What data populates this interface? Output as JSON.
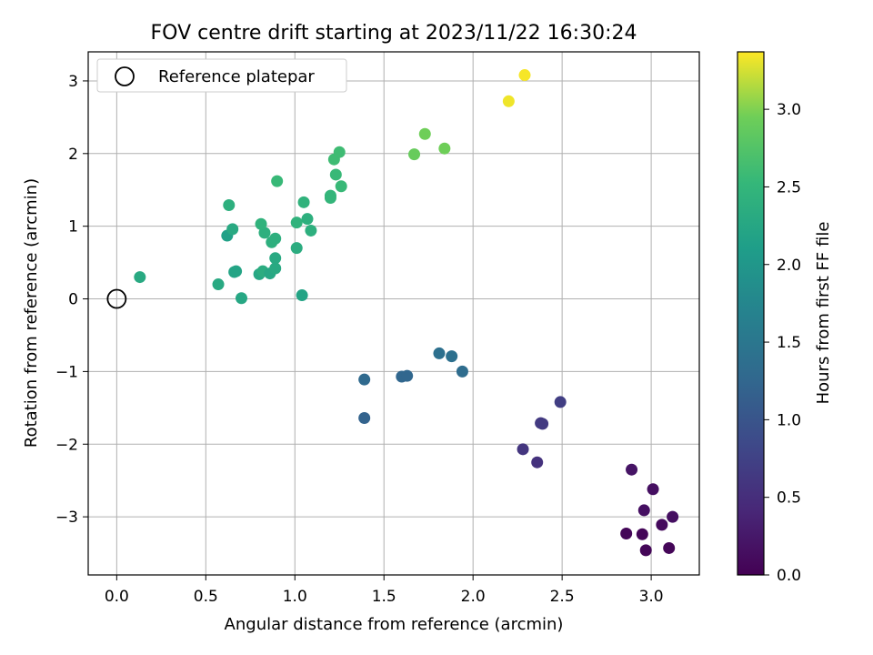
{
  "chart_data": {
    "type": "scatter",
    "title": "FOV centre drift starting at 2023/11/22 16:30:24",
    "xlabel": "Angular distance from reference (arcmin)",
    "ylabel": "Rotation from reference (arcmin)",
    "xlim": [
      -0.16,
      3.27
    ],
    "ylim": [
      -3.8,
      3.4
    ],
    "xticks": [
      0.0,
      0.5,
      1.0,
      1.5,
      2.0,
      2.5,
      3.0
    ],
    "xtick_labels": [
      "0.0",
      "0.5",
      "1.0",
      "1.5",
      "2.0",
      "2.5",
      "3.0"
    ],
    "yticks": [
      -3,
      -2,
      -1,
      0,
      1,
      2,
      3
    ],
    "ytick_labels": [
      "−3",
      "−2",
      "−1",
      "0",
      "1",
      "2",
      "3"
    ],
    "grid": true,
    "legend": {
      "location": "upper-left",
      "label": "Reference platepar"
    },
    "reference_point": {
      "x": 0.0,
      "y": 0.0,
      "marker": "open-circle"
    },
    "colorbar": {
      "label": "Hours from first FF file",
      "colormap": "viridis",
      "range": [
        0.0,
        3.37
      ],
      "ticks": [
        0.0,
        0.5,
        1.0,
        1.5,
        2.0,
        2.5,
        3.0
      ],
      "tick_labels": [
        "0.0",
        "0.5",
        "1.0",
        "1.5",
        "2.0",
        "2.5",
        "3.0"
      ]
    },
    "series": [
      {
        "points": [
          {
            "x": 2.86,
            "y": -3.23,
            "c": 0.05
          },
          {
            "x": 2.95,
            "y": -3.24,
            "c": 0.05
          },
          {
            "x": 2.97,
            "y": -3.46,
            "c": 0.05
          },
          {
            "x": 3.1,
            "y": -3.43,
            "c": 0.05
          },
          {
            "x": 3.06,
            "y": -3.11,
            "c": 0.1
          },
          {
            "x": 3.12,
            "y": -3.0,
            "c": 0.15
          },
          {
            "x": 2.96,
            "y": -2.91,
            "c": 0.15
          },
          {
            "x": 3.01,
            "y": -2.62,
            "c": 0.15
          },
          {
            "x": 2.89,
            "y": -2.35,
            "c": 0.2
          },
          {
            "x": 2.36,
            "y": -2.25,
            "c": 0.55
          },
          {
            "x": 2.28,
            "y": -2.07,
            "c": 0.6
          },
          {
            "x": 2.39,
            "y": -1.72,
            "c": 0.65
          },
          {
            "x": 2.38,
            "y": -1.71,
            "c": 0.65
          },
          {
            "x": 2.49,
            "y": -1.42,
            "c": 0.7
          },
          {
            "x": 1.94,
            "y": -1.0,
            "c": 1.35
          },
          {
            "x": 1.88,
            "y": -0.79,
            "c": 1.4
          },
          {
            "x": 1.81,
            "y": -0.75,
            "c": 1.4
          },
          {
            "x": 1.6,
            "y": -1.07,
            "c": 1.25
          },
          {
            "x": 1.63,
            "y": -1.06,
            "c": 1.25
          },
          {
            "x": 1.39,
            "y": -1.11,
            "c": 1.3
          },
          {
            "x": 1.39,
            "y": -1.64,
            "c": 1.2
          },
          {
            "x": 0.13,
            "y": 0.3,
            "c": 2.3
          },
          {
            "x": 0.57,
            "y": 0.2,
            "c": 2.3
          },
          {
            "x": 0.7,
            "y": 0.01,
            "c": 2.25
          },
          {
            "x": 0.67,
            "y": 0.38,
            "c": 2.2
          },
          {
            "x": 0.66,
            "y": 0.37,
            "c": 2.2
          },
          {
            "x": 0.62,
            "y": 0.87,
            "c": 2.15
          },
          {
            "x": 0.65,
            "y": 0.96,
            "c": 2.3
          },
          {
            "x": 0.63,
            "y": 1.29,
            "c": 2.4
          },
          {
            "x": 0.8,
            "y": 0.34,
            "c": 2.25
          },
          {
            "x": 0.82,
            "y": 0.38,
            "c": 2.35
          },
          {
            "x": 0.86,
            "y": 0.35,
            "c": 2.25
          },
          {
            "x": 0.89,
            "y": 0.42,
            "c": 2.3
          },
          {
            "x": 0.89,
            "y": 0.56,
            "c": 2.3
          },
          {
            "x": 0.87,
            "y": 0.78,
            "c": 2.4
          },
          {
            "x": 0.89,
            "y": 0.83,
            "c": 2.4
          },
          {
            "x": 0.83,
            "y": 0.91,
            "c": 2.4
          },
          {
            "x": 0.81,
            "y": 1.03,
            "c": 2.45
          },
          {
            "x": 0.9,
            "y": 1.62,
            "c": 2.55
          },
          {
            "x": 1.04,
            "y": 0.05,
            "c": 2.2
          },
          {
            "x": 1.01,
            "y": 0.7,
            "c": 2.35
          },
          {
            "x": 1.01,
            "y": 1.05,
            "c": 2.45
          },
          {
            "x": 1.07,
            "y": 1.1,
            "c": 2.4
          },
          {
            "x": 1.09,
            "y": 0.94,
            "c": 2.4
          },
          {
            "x": 1.05,
            "y": 1.33,
            "c": 2.45
          },
          {
            "x": 1.2,
            "y": 1.39,
            "c": 2.5
          },
          {
            "x": 1.2,
            "y": 1.42,
            "c": 2.5
          },
          {
            "x": 1.26,
            "y": 1.55,
            "c": 2.55
          },
          {
            "x": 1.23,
            "y": 1.71,
            "c": 2.55
          },
          {
            "x": 1.22,
            "y": 1.92,
            "c": 2.6
          },
          {
            "x": 1.25,
            "y": 2.02,
            "c": 2.6
          },
          {
            "x": 1.67,
            "y": 1.99,
            "c": 2.9
          },
          {
            "x": 1.73,
            "y": 2.27,
            "c": 2.95
          },
          {
            "x": 1.84,
            "y": 2.07,
            "c": 2.95
          },
          {
            "x": 2.2,
            "y": 2.72,
            "c": 3.33
          },
          {
            "x": 2.29,
            "y": 3.08,
            "c": 3.35
          }
        ]
      }
    ]
  }
}
